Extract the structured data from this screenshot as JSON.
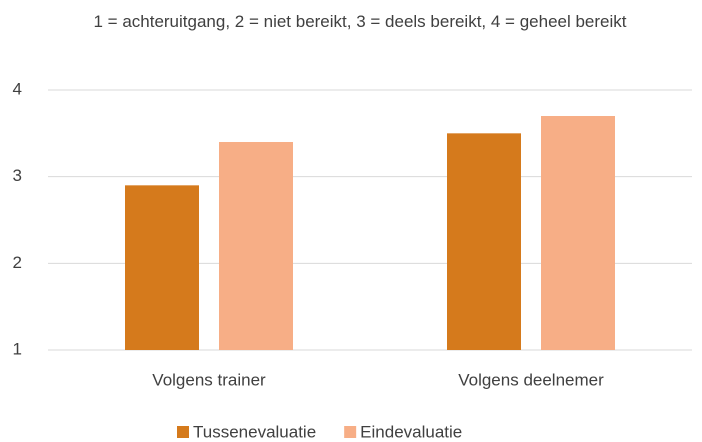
{
  "chart_data": {
    "type": "bar",
    "title": "1 = achteruitgang, 2 = niet bereikt, 3 = deels bereikt, 4 = geheel bereikt",
    "categories": [
      "Volgens trainer",
      "Volgens deelnemer"
    ],
    "series": [
      {
        "name": "Tussenevaluatie",
        "color": "#d57a1c",
        "values": [
          2.9,
          3.5
        ]
      },
      {
        "name": "Eindevaluatie",
        "color": "#f7ae86",
        "values": [
          3.4,
          3.7
        ]
      }
    ],
    "ylim": [
      1,
      4
    ],
    "yticks": [
      1,
      2,
      3,
      4
    ],
    "grid": true,
    "legend": "bottom"
  }
}
